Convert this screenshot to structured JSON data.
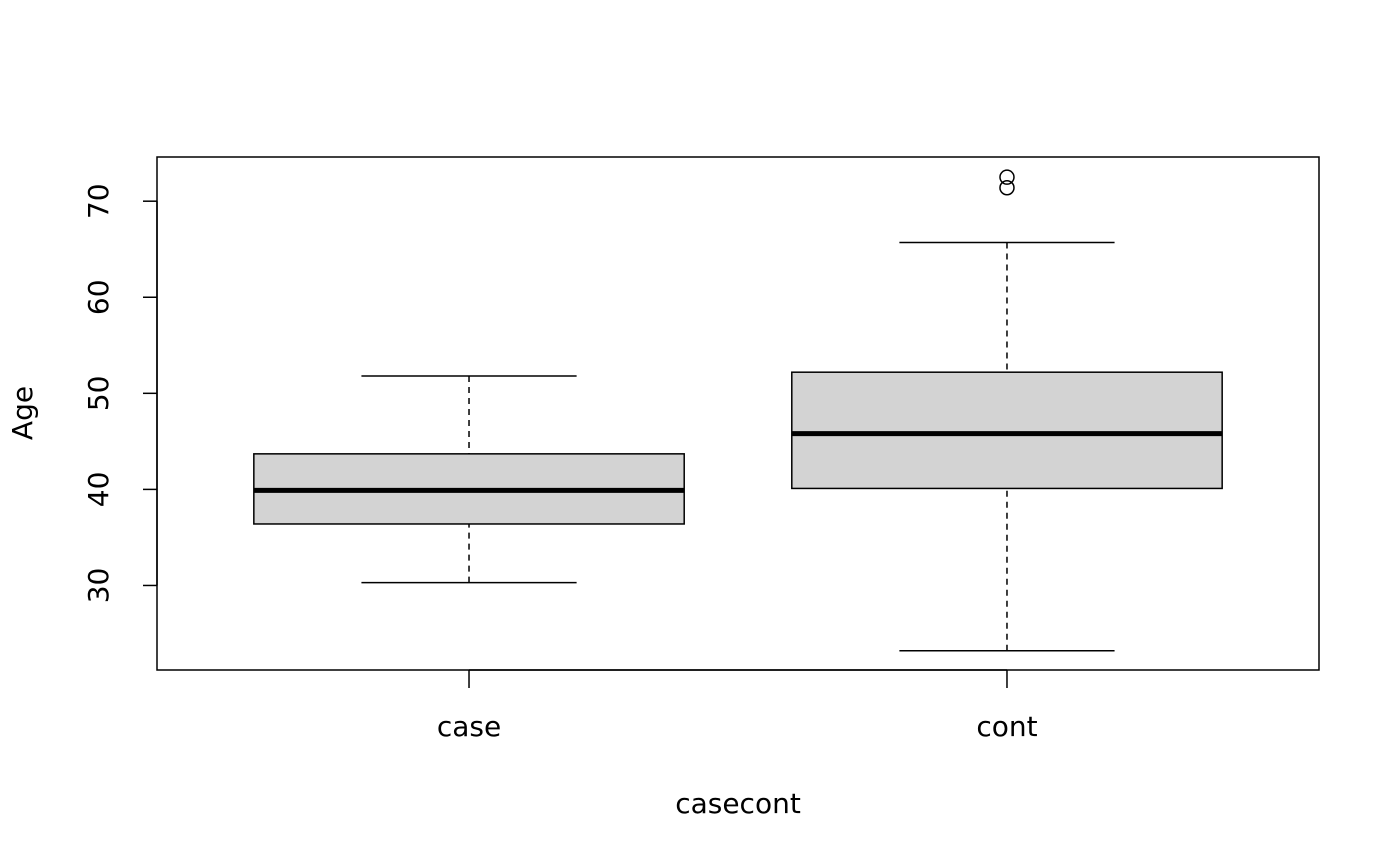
{
  "chart_data": {
    "type": "boxplot",
    "xlabel": "casecont",
    "ylabel": "Age",
    "categories": [
      "case",
      "cont"
    ],
    "boxes": [
      {
        "whislo": 30.3,
        "q1": 36.4,
        "median": 39.9,
        "q3": 43.7,
        "whishi": 51.8,
        "outliers": []
      },
      {
        "whislo": 23.2,
        "q1": 40.1,
        "median": 45.8,
        "q3": 52.2,
        "whishi": 65.7,
        "outliers": [
          71.4,
          72.5
        ]
      }
    ],
    "color": "#d3d3d3",
    "ylim": [
      21.2,
      74.6
    ],
    "yticks": [
      30,
      40,
      50,
      60,
      70
    ]
  }
}
